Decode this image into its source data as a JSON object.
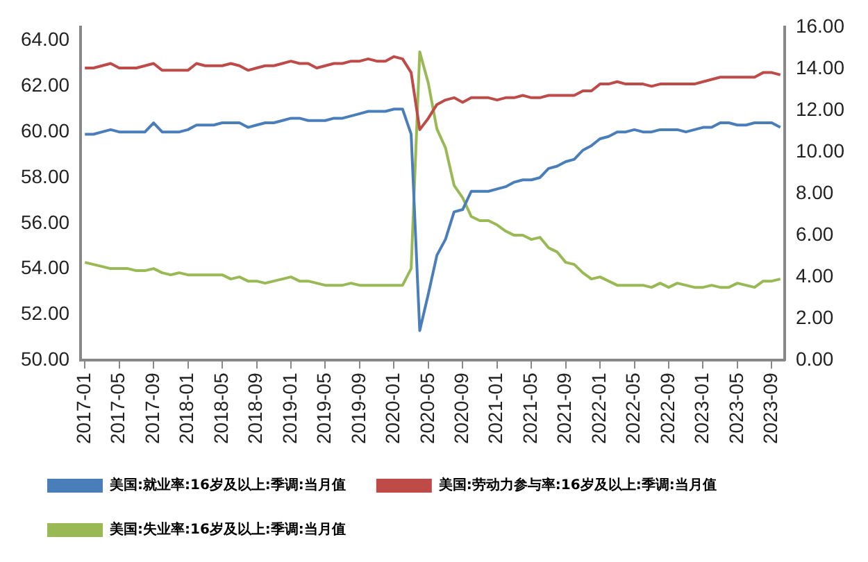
{
  "chart_data": {
    "type": "line",
    "categories": [
      "2017-01",
      null,
      null,
      null,
      "2017-05",
      null,
      null,
      null,
      "2017-09",
      null,
      null,
      null,
      "2018-01",
      null,
      null,
      null,
      "2018-05",
      null,
      null,
      null,
      "2018-09",
      null,
      null,
      null,
      "2019-01",
      null,
      null,
      null,
      "2019-05",
      null,
      null,
      null,
      "2019-09",
      null,
      null,
      null,
      "2020-01",
      null,
      null,
      null,
      "2020-05",
      null,
      null,
      null,
      "2020-09",
      null,
      null,
      null,
      "2021-01",
      null,
      null,
      null,
      "2021-05",
      null,
      null,
      null,
      "2021-09",
      null,
      null,
      null,
      "2022-01",
      null,
      null,
      null,
      "2022-05",
      null,
      null,
      null,
      "2022-09",
      null,
      null,
      null,
      "2023-01",
      null,
      null,
      null,
      "2023-05",
      null,
      null,
      null,
      "2023-09",
      null
    ],
    "series": [
      {
        "name": "美国:就业率:16岁及以上:季调:当月值",
        "color": "#4a7ebb",
        "values": [
          59.9,
          59.9,
          60.0,
          60.1,
          60.0,
          60.0,
          60.0,
          60.0,
          60.4,
          60.0,
          60.0,
          60.0,
          60.1,
          60.3,
          60.3,
          60.3,
          60.4,
          60.4,
          60.4,
          60.2,
          60.3,
          60.4,
          60.4,
          60.5,
          60.6,
          60.6,
          60.5,
          60.5,
          60.5,
          60.6,
          60.6,
          60.7,
          60.8,
          60.9,
          60.9,
          60.9,
          61.0,
          61.0,
          59.9,
          51.3,
          52.9,
          54.6,
          55.3,
          56.5,
          56.6,
          57.4,
          57.4,
          57.4,
          57.5,
          57.6,
          57.8,
          57.9,
          57.9,
          58.0,
          58.4,
          58.5,
          58.7,
          58.8,
          59.2,
          59.4,
          59.7,
          59.8,
          60.0,
          60.0,
          60.1,
          60.0,
          60.0,
          60.1,
          60.1,
          60.1,
          60.0,
          60.1,
          60.2,
          60.2,
          60.4,
          60.4,
          60.3,
          60.3,
          60.4,
          60.4,
          60.4,
          60.2
        ]
      },
      {
        "name": "美国:劳动力参与率:16岁及以上:季调:当月值",
        "color": "#be4b48",
        "values": [
          62.8,
          62.8,
          62.9,
          63.0,
          62.8,
          62.8,
          62.8,
          62.9,
          63.0,
          62.7,
          62.7,
          62.7,
          62.7,
          63.0,
          62.9,
          62.9,
          62.9,
          63.0,
          62.9,
          62.7,
          62.8,
          62.9,
          62.9,
          63.0,
          63.1,
          63.0,
          63.0,
          62.8,
          62.9,
          63.0,
          63.0,
          63.1,
          63.1,
          63.2,
          63.1,
          63.1,
          63.3,
          63.2,
          62.6,
          60.1,
          60.6,
          61.2,
          61.4,
          61.5,
          61.3,
          61.5,
          61.5,
          61.5,
          61.4,
          61.5,
          61.5,
          61.6,
          61.5,
          61.5,
          61.6,
          61.6,
          61.6,
          61.6,
          61.8,
          61.8,
          62.1,
          62.1,
          62.2,
          62.1,
          62.1,
          62.1,
          62.0,
          62.1,
          62.1,
          62.1,
          62.1,
          62.1,
          62.2,
          62.3,
          62.4,
          62.4,
          62.4,
          62.4,
          62.4,
          62.6,
          62.6,
          62.5
        ]
      },
      {
        "name": "美国:失业率:16岁及以上:季调:当月值",
        "color": "#98b954",
        "axis": "y2",
        "values": [
          4.7,
          4.6,
          4.5,
          4.4,
          4.4,
          4.4,
          4.3,
          4.3,
          4.4,
          4.2,
          4.1,
          4.2,
          4.1,
          4.1,
          4.1,
          4.1,
          4.1,
          3.9,
          4.0,
          3.8,
          3.8,
          3.7,
          3.8,
          3.9,
          4.0,
          3.8,
          3.8,
          3.7,
          3.6,
          3.6,
          3.6,
          3.7,
          3.6,
          3.6,
          3.6,
          3.6,
          3.6,
          3.6,
          4.4,
          14.8,
          13.3,
          11.1,
          10.2,
          8.4,
          7.8,
          6.9,
          6.7,
          6.7,
          6.5,
          6.2,
          6.0,
          6.0,
          5.8,
          5.9,
          5.4,
          5.2,
          4.7,
          4.6,
          4.2,
          3.9,
          4.0,
          3.8,
          3.6,
          3.6,
          3.6,
          3.6,
          3.5,
          3.7,
          3.5,
          3.7,
          3.6,
          3.5,
          3.5,
          3.6,
          3.5,
          3.5,
          3.7,
          3.6,
          3.5,
          3.8,
          3.8,
          3.9
        ]
      }
    ],
    "ylim": [
      50,
      64.6
    ],
    "yticks": [
      {
        "value": 50,
        "label": "50.00"
      },
      {
        "value": 52,
        "label": "52.00"
      },
      {
        "value": 54,
        "label": "54.00"
      },
      {
        "value": 56,
        "label": "56.00"
      },
      {
        "value": 58,
        "label": "58.00"
      },
      {
        "value": 60,
        "label": "60.00"
      },
      {
        "value": 62,
        "label": "62.00"
      },
      {
        "value": 64,
        "label": "64.00"
      }
    ],
    "y2lim": [
      0,
      16
    ],
    "y2ticks": [
      {
        "value": 0,
        "label": "0.00"
      },
      {
        "value": 2,
        "label": "2.00"
      },
      {
        "value": 4,
        "label": "4.00"
      },
      {
        "value": 6,
        "label": "6.00"
      },
      {
        "value": 8,
        "label": "8.00"
      },
      {
        "value": 10,
        "label": "10.00"
      },
      {
        "value": 12,
        "label": "12.00"
      },
      {
        "value": 14,
        "label": "14.00"
      },
      {
        "value": 16,
        "label": "16.00"
      }
    ],
    "grid": false,
    "legend": "bottom",
    "marker": "none",
    "line_style": "solid"
  }
}
